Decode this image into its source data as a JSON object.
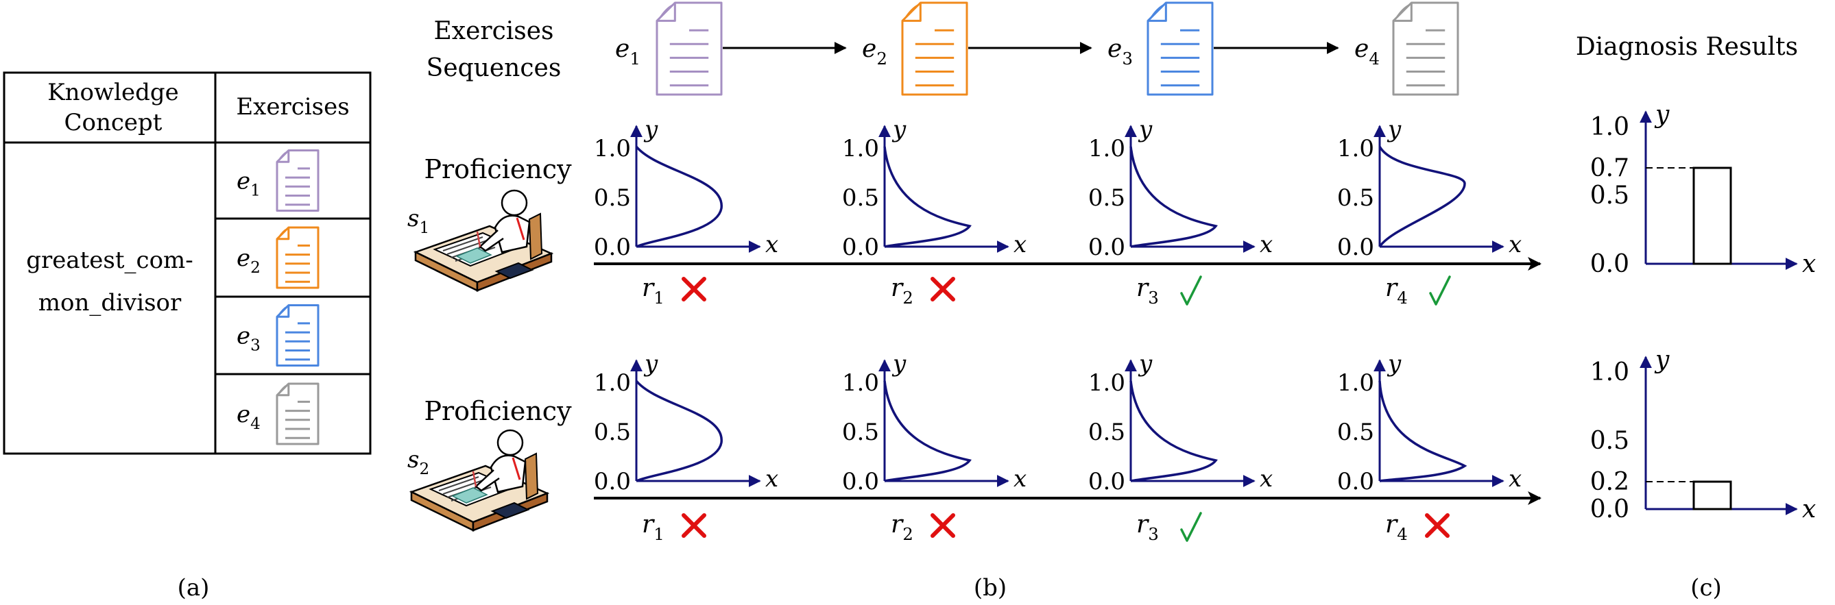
{
  "panel_a": {
    "header_concept_line1": "Knowledge",
    "header_concept_line2": "Concept",
    "header_exercises": "Exercises",
    "concept_line1": "greatest_com-",
    "concept_line2": "mon_divisor",
    "exercises": [
      {
        "label": "e",
        "sub": "1",
        "icon": "document-icon",
        "color": "#a58fc2"
      },
      {
        "label": "e",
        "sub": "2",
        "icon": "document-icon",
        "color": "#f08a1c"
      },
      {
        "label": "e",
        "sub": "3",
        "icon": "document-icon",
        "color": "#4a86e0"
      },
      {
        "label": "e",
        "sub": "4",
        "icon": "document-icon",
        "color": "#9a9a9a"
      }
    ],
    "caption": "(a)"
  },
  "panel_b": {
    "sequence_title_line1": "Exercises",
    "sequence_title_line2": "Sequences",
    "sequence": [
      {
        "label": "e",
        "sub": "1",
        "color": "#a58fc2"
      },
      {
        "label": "e",
        "sub": "2",
        "color": "#f08a1c"
      },
      {
        "label": "e",
        "sub": "3",
        "color": "#4a86e0"
      },
      {
        "label": "e",
        "sub": "4",
        "color": "#9a9a9a"
      }
    ],
    "students": [
      {
        "proficiency_label": "Proficiency",
        "student_label": "s",
        "student_sub": "1",
        "responses": [
          {
            "label": "r",
            "sub": "1",
            "result": "wrong"
          },
          {
            "label": "r",
            "sub": "2",
            "result": "wrong"
          },
          {
            "label": "r",
            "sub": "3",
            "result": "right"
          },
          {
            "label": "r",
            "sub": "4",
            "result": "right"
          }
        ]
      },
      {
        "proficiency_label": "Proficiency",
        "student_label": "s",
        "student_sub": "2",
        "responses": [
          {
            "label": "r",
            "sub": "1",
            "result": "wrong"
          },
          {
            "label": "r",
            "sub": "2",
            "result": "wrong"
          },
          {
            "label": "r",
            "sub": "3",
            "result": "right"
          },
          {
            "label": "r",
            "sub": "4",
            "result": "wrong"
          }
        ]
      }
    ],
    "mini_plot": {
      "x_label": "x",
      "y_label": "y",
      "ticks": [
        "0.0",
        "0.5",
        "1.0"
      ]
    },
    "caption": "(b)"
  },
  "panel_c": {
    "title": "Diagnosis Results",
    "plots": [
      {
        "ticks": [
          "0.0",
          "0.5",
          "0.7",
          "1.0"
        ],
        "value": 0.7,
        "value_label": "0.7",
        "x_label": "x",
        "y_label": "y"
      },
      {
        "ticks": [
          "0.0",
          "0.2",
          "0.5",
          "1.0"
        ],
        "value": 0.2,
        "value_label": "0.2",
        "x_label": "x",
        "y_label": "y"
      }
    ],
    "caption": "(c)"
  },
  "colors": {
    "axis": "#12127a",
    "curve": "#12127a",
    "wrong": "#e01010",
    "right": "#1a9a3a",
    "arrow": "#000000"
  }
}
